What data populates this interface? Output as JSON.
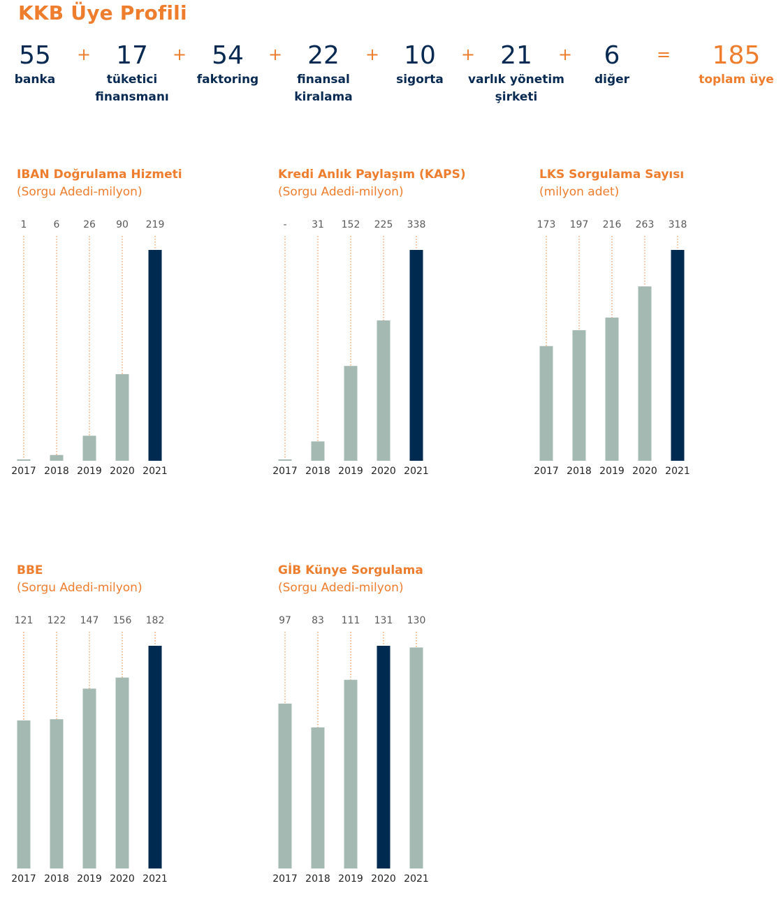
{
  "page": {
    "title": "KKB Üye Profili"
  },
  "members": {
    "items": [
      {
        "value": "55",
        "label": "banka"
      },
      {
        "value": "17",
        "label": "tüketici finansmanı"
      },
      {
        "value": "54",
        "label": "faktoring"
      },
      {
        "value": "22",
        "label": "finansal kiralama"
      },
      {
        "value": "10",
        "label": "sigorta"
      },
      {
        "value": "21",
        "label": "varlık yönetim şirketi"
      },
      {
        "value": "6",
        "label": "diğer"
      }
    ],
    "plus": "+",
    "equals": "=",
    "total": {
      "value": "185",
      "label": "toplam üye"
    }
  },
  "colors": {
    "accent": "#ee7d2e",
    "navy": "#082a52",
    "bar": "#a4b9b2",
    "highlight_bar": "#012a50"
  },
  "chart_data": [
    {
      "type": "bar",
      "title": "IBAN Doğrulama Hizmeti",
      "subtitle": "(Sorgu Adedi-milyon)",
      "categories": [
        "2017",
        "2018",
        "2019",
        "2020",
        "2021"
      ],
      "values": [
        1,
        6,
        26,
        90,
        219
      ],
      "value_labels": [
        "1",
        "6",
        "26",
        "90",
        "219"
      ],
      "highlight_index": 4,
      "ylim": [
        0,
        219
      ],
      "grid": false
    },
    {
      "type": "bar",
      "title": "Kredi Anlık Paylaşım (KAPS)",
      "subtitle": "(Sorgu Adedi-milyon)",
      "categories": [
        "2017",
        "2018",
        "2019",
        "2020",
        "2021"
      ],
      "values": [
        0,
        31,
        152,
        225,
        338
      ],
      "value_labels": [
        "-",
        "31",
        "152",
        "225",
        "338"
      ],
      "highlight_index": 4,
      "ylim": [
        0,
        338
      ],
      "grid": false
    },
    {
      "type": "bar",
      "title": "LKS Sorgulama Sayısı",
      "subtitle": "(milyon adet)",
      "categories": [
        "2017",
        "2018",
        "2019",
        "2020",
        "2021"
      ],
      "values": [
        173,
        197,
        216,
        263,
        318
      ],
      "value_labels": [
        "173",
        "197",
        "216",
        "263",
        "318"
      ],
      "highlight_index": 4,
      "ylim": [
        0,
        318
      ],
      "grid": false
    },
    {
      "type": "bar",
      "title": "BBE",
      "subtitle": "(Sorgu Adedi-milyon)",
      "categories": [
        "2017",
        "2018",
        "2019",
        "2020",
        "2021"
      ],
      "values": [
        121,
        122,
        147,
        156,
        182
      ],
      "value_labels": [
        "121",
        "122",
        "147",
        "156",
        "182"
      ],
      "highlight_index": 4,
      "ylim": [
        0,
        182
      ],
      "grid": false
    },
    {
      "type": "bar",
      "title": "GİB Künye Sorgulama",
      "subtitle": "(Sorgu Adedi-milyon)",
      "categories": [
        "2017",
        "2018",
        "2019",
        "2020",
        "2021"
      ],
      "values": [
        97,
        83,
        111,
        131,
        130
      ],
      "value_labels": [
        "97",
        "83",
        "111",
        "131",
        "130"
      ],
      "highlight_index": 3,
      "ylim": [
        0,
        131
      ],
      "grid": false
    }
  ]
}
